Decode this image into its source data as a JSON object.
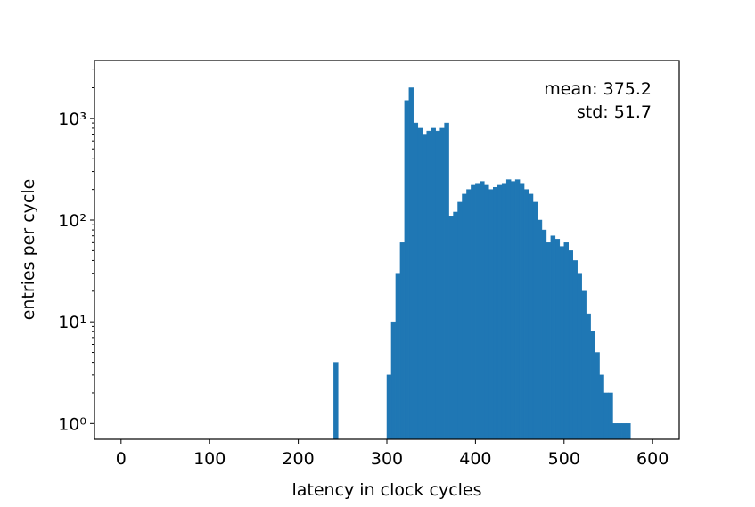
{
  "chart_data": {
    "type": "histogram",
    "xlabel": "latency in clock cycles",
    "ylabel": "entries per cycle",
    "annotations": [
      "mean: 375.2",
      "std: 51.7"
    ],
    "color": "#1f77b4",
    "log_y": true,
    "bins": [
      240,
      245,
      250,
      255,
      260,
      265,
      270,
      275,
      280,
      285,
      290,
      295,
      300,
      305,
      310,
      315,
      320,
      325,
      330,
      335,
      340,
      345,
      350,
      355,
      360,
      365,
      370,
      375,
      380,
      385,
      390,
      395,
      400,
      405,
      410,
      415,
      420,
      425,
      430,
      435,
      440,
      445,
      450,
      455,
      460,
      465,
      470,
      475,
      480,
      485,
      490,
      495,
      500,
      505,
      510,
      515,
      520,
      525,
      530,
      535,
      540,
      545,
      550,
      555,
      560,
      565,
      570,
      575
    ],
    "counts": [
      4,
      0,
      0,
      0,
      0,
      0,
      0,
      0,
      0,
      0,
      0,
      0,
      3,
      10,
      30,
      60,
      1500,
      2000,
      900,
      800,
      700,
      750,
      800,
      750,
      800,
      900,
      110,
      120,
      150,
      180,
      200,
      220,
      230,
      240,
      220,
      200,
      210,
      220,
      230,
      250,
      240,
      250,
      230,
      200,
      180,
      150,
      100,
      80,
      60,
      70,
      65,
      55,
      60,
      50,
      40,
      30,
      20,
      12,
      8,
      5,
      3,
      2,
      2,
      1,
      1,
      1,
      1
    ],
    "xlim": [
      -30,
      630
    ],
    "xticks": [
      0,
      100,
      200,
      300,
      400,
      500,
      600
    ],
    "ylim": [
      0.7,
      3700
    ],
    "yticks": [
      {
        "value": 1,
        "label": "10⁰"
      },
      {
        "value": 10,
        "label": "10¹"
      },
      {
        "value": 100,
        "label": "10²"
      },
      {
        "value": 1000,
        "label": "10³"
      }
    ]
  }
}
